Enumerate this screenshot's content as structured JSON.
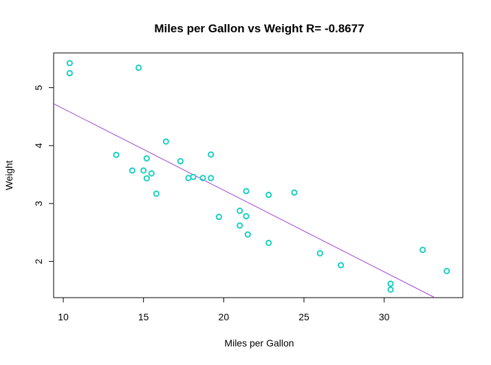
{
  "chart_data": {
    "type": "scatter",
    "title": "Miles per Gallon vs Weight R= -0.8677",
    "xlabel": "Miles per Gallon",
    "ylabel": "Weight",
    "xlim": [
      9.4,
      34.9
    ],
    "ylim": [
      1.375,
      5.6
    ],
    "xticks": [
      10,
      15,
      20,
      25,
      30
    ],
    "yticks": [
      2,
      3,
      4,
      5
    ],
    "grid": false,
    "point_color": "#1ccfc3",
    "line_color": "#a042cf",
    "points": {
      "x": [
        21.0,
        21.0,
        22.8,
        21.4,
        18.7,
        18.1,
        14.3,
        24.4,
        22.8,
        19.2,
        17.8,
        16.4,
        17.3,
        15.2,
        10.4,
        10.4,
        14.7,
        32.4,
        30.4,
        33.9,
        21.5,
        15.5,
        15.2,
        13.3,
        19.2,
        27.3,
        26.0,
        30.4,
        15.8,
        19.7,
        15.0,
        21.4
      ],
      "y": [
        2.62,
        2.875,
        2.32,
        3.215,
        3.44,
        3.46,
        3.57,
        3.19,
        3.15,
        3.44,
        3.44,
        4.07,
        3.73,
        3.78,
        5.25,
        5.424,
        5.345,
        2.2,
        1.615,
        1.835,
        2.465,
        3.52,
        3.435,
        3.84,
        3.845,
        1.935,
        2.14,
        1.513,
        3.17,
        2.77,
        3.57,
        2.78
      ]
    },
    "regression": {
      "intercept": 6.047,
      "slope": -0.1409
    }
  }
}
